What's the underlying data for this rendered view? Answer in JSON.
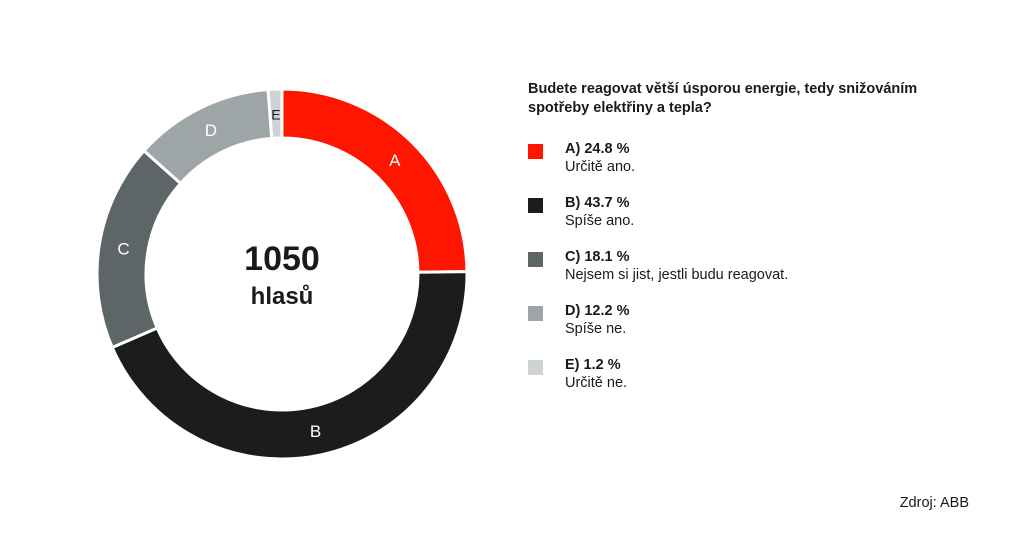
{
  "chart_data": {
    "type": "pie",
    "variant": "donut",
    "title": "Budete reagovat větší úsporou energie, tedy snižováním spotřeby elektřiny a tepla?",
    "center_value": "1050",
    "center_label": "hlasů",
    "legend_position": "right",
    "slices": [
      {
        "label": "A",
        "value": 24.8,
        "legend": "A) 24.8 %",
        "description": "Určitě ano.",
        "color": "#ff1600"
      },
      {
        "label": "B",
        "value": 43.7,
        "legend": "B) 43.7 %",
        "description": "Spíše ano.",
        "color": "#1a1c1e"
      },
      {
        "label": "C",
        "value": 18.1,
        "legend": "C) 18.1 %",
        "description": "Nejsem si jist, jestli budu reagovat.",
        "color": "#5e6566"
      },
      {
        "label": "D",
        "value": 12.2,
        "legend": "D) 12.2 %",
        "description": "Spíše ne.",
        "color": "#9ea5a6"
      },
      {
        "label": "E",
        "value": 1.2,
        "legend": "E) 1.2 %",
        "description": "Určitě ne.",
        "color": "#cdd3d4"
      }
    ]
  },
  "source": "Zdroj: ABB"
}
